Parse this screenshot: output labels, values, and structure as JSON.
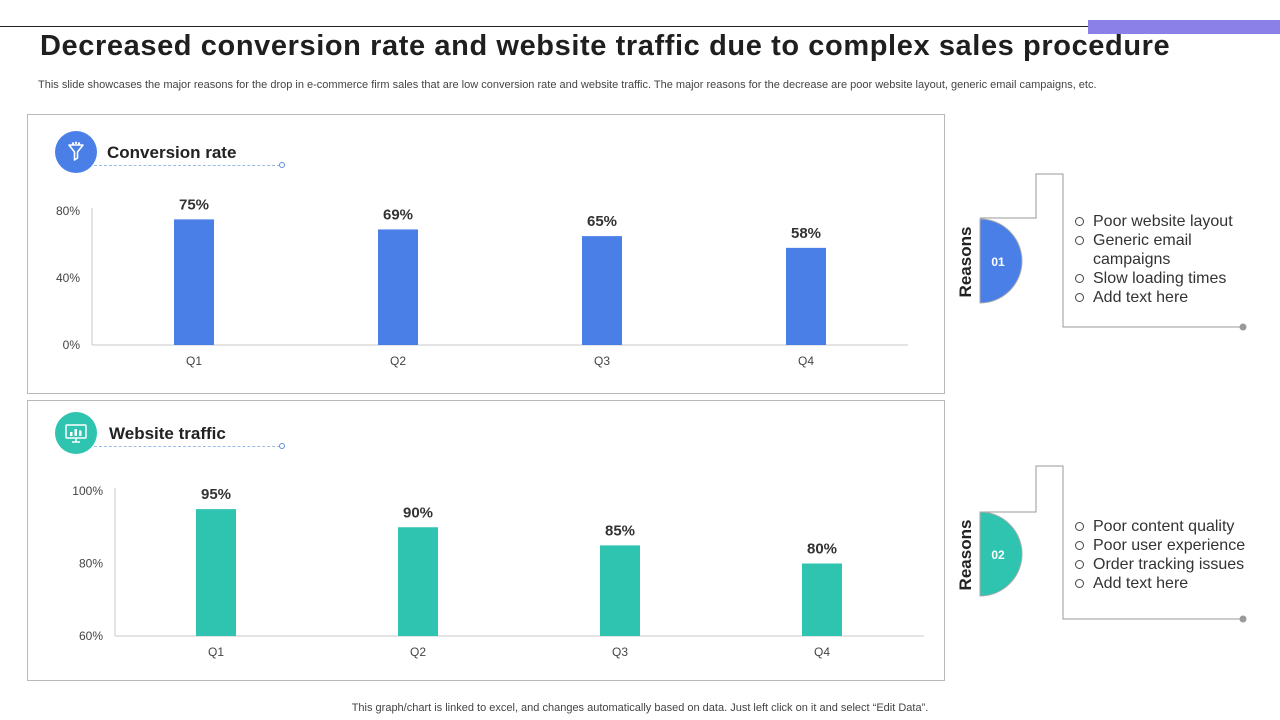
{
  "header": {
    "title": "Decreased conversion rate and website traffic due to complex sales procedure",
    "subtitle": "This slide showcases the major reasons for the drop in e-commerce firm sales that are low conversion rate and website traffic. The major reasons for the decrease are poor website layout, generic email campaigns, etc."
  },
  "colors": {
    "accent_purple": "#8b7fe8",
    "blue": "#4a7fe8",
    "teal": "#2ec4b0"
  },
  "chart_data": [
    {
      "type": "bar",
      "title": "Conversion rate",
      "icon": "funnel-icon",
      "categories": [
        "Q1",
        "Q2",
        "Q3",
        "Q4"
      ],
      "values": [
        75,
        69,
        65,
        58
      ],
      "value_labels": [
        "75%",
        "69%",
        "65%",
        "58%"
      ],
      "ylim": [
        0,
        80
      ],
      "yticks": [
        0,
        40,
        80
      ],
      "ytick_labels": [
        "0%",
        "40%",
        "80%"
      ],
      "color": "#4a7fe8"
    },
    {
      "type": "bar",
      "title": "Website traffic",
      "icon": "analytics-icon",
      "categories": [
        "Q1",
        "Q2",
        "Q3",
        "Q4"
      ],
      "values": [
        95,
        90,
        85,
        80
      ],
      "value_labels": [
        "95%",
        "90%",
        "85%",
        "80%"
      ],
      "ylim": [
        60,
        100
      ],
      "yticks": [
        60,
        80,
        100
      ],
      "ytick_labels": [
        "60%",
        "80%",
        "100%"
      ],
      "color": "#2ec4b0"
    }
  ],
  "reasons": [
    {
      "label": "Reasons",
      "number": "01",
      "color": "#4a7fe8",
      "items": [
        "Poor website layout",
        "Generic email campaigns",
        "Slow loading times",
        "Add text here"
      ]
    },
    {
      "label": "Reasons",
      "number": "02",
      "color": "#2ec4b0",
      "items": [
        "Poor content quality",
        "Poor user experience",
        "Order tracking issues",
        "Add text here"
      ]
    }
  ],
  "footer": "This graph/chart is linked to excel, and changes automatically based on data. Just left click on it and select “Edit Data”."
}
